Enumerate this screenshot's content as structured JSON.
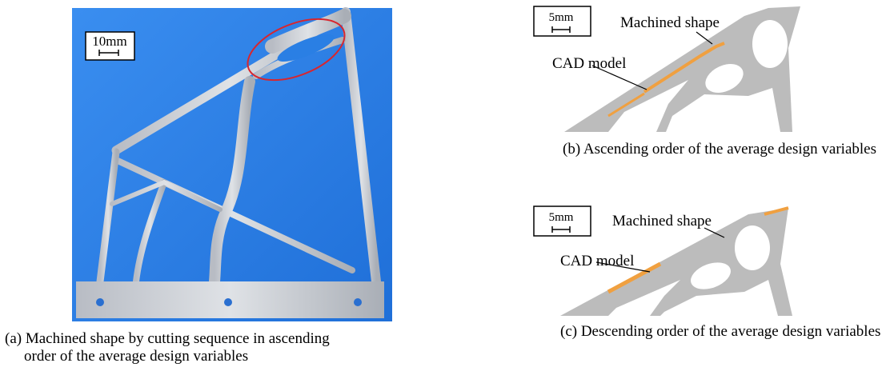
{
  "panels": [
    {
      "scale": "10mm",
      "caption_lines": [
        "(a)  Machined shape by cutting sequence in ascending",
        "order of the average design variables"
      ]
    },
    {
      "scale": "5mm",
      "machined_label": "Machined shape",
      "cad_label": "CAD model",
      "caption": "(b) Ascending order of the average design variables"
    },
    {
      "scale": "5mm",
      "machined_label": "Machined shape",
      "cad_label": "CAD model",
      "caption": "(c) Descending order of the average design variables"
    }
  ]
}
